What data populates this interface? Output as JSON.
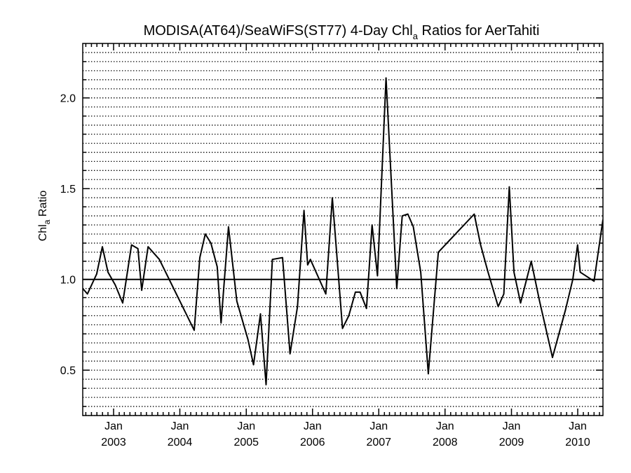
{
  "chart_data": {
    "type": "line",
    "title": {
      "main": "MODISA(AT64)/SeaWiFS(ST77) 4-Day Chl",
      "sub": "a",
      "rest": " Ratios for AerTahiti"
    },
    "ylabel": {
      "main": "Chl",
      "sub": "a",
      "rest": " Ratio"
    },
    "xlabel": "",
    "xlim": [
      "2002-07-15",
      "2010-05-20"
    ],
    "ylim": [
      0.25,
      2.3
    ],
    "yticks": [
      0.5,
      1.0,
      1.5,
      2.0
    ],
    "ytick_labels": [
      "0.5",
      "1.0",
      "1.5",
      "2.0"
    ],
    "xticks": [
      "2003-01-01",
      "2004-01-01",
      "2005-01-01",
      "2006-01-01",
      "2007-01-01",
      "2008-01-01",
      "2009-01-01",
      "2010-01-01"
    ],
    "xtick_month_labels": [
      "Jan",
      "Jan",
      "Jan",
      "Jan",
      "Jan",
      "Jan",
      "Jan",
      "Jan"
    ],
    "xtick_year_labels": [
      "2003",
      "2004",
      "2005",
      "2006",
      "2007",
      "2008",
      "2009",
      "2010"
    ],
    "grid": {
      "y_dotted_step": 0.05,
      "x": false
    },
    "reference_line": 1.0,
    "series": [
      {
        "color": "#000000",
        "points": [
          [
            "2002-07-15",
            0.95
          ],
          [
            "2002-08-10",
            0.92
          ],
          [
            "2002-09-30",
            1.03
          ],
          [
            "2002-10-31",
            1.18
          ],
          [
            "2002-12-01",
            1.04
          ],
          [
            "2003-01-10",
            0.97
          ],
          [
            "2003-02-20",
            0.87
          ],
          [
            "2003-04-10",
            1.19
          ],
          [
            "2003-05-15",
            1.17
          ],
          [
            "2003-06-05",
            0.94
          ],
          [
            "2003-07-10",
            1.18
          ],
          [
            "2003-09-10",
            1.11
          ],
          [
            "2004-03-20",
            0.72
          ],
          [
            "2004-04-20",
            1.12
          ],
          [
            "2004-05-20",
            1.25
          ],
          [
            "2004-06-20",
            1.2
          ],
          [
            "2004-07-25",
            1.07
          ],
          [
            "2004-08-15",
            0.76
          ],
          [
            "2004-09-25",
            1.29
          ],
          [
            "2004-11-10",
            0.88
          ],
          [
            "2005-01-10",
            0.67
          ],
          [
            "2005-02-10",
            0.53
          ],
          [
            "2005-03-20",
            0.81
          ],
          [
            "2005-04-20",
            0.42
          ],
          [
            "2005-05-25",
            1.11
          ],
          [
            "2005-07-20",
            1.12
          ],
          [
            "2005-08-30",
            0.59
          ],
          [
            "2005-10-10",
            0.85
          ],
          [
            "2005-11-15",
            1.38
          ],
          [
            "2005-12-05",
            1.08
          ],
          [
            "2005-12-20",
            1.11
          ],
          [
            "2006-03-15",
            0.92
          ],
          [
            "2006-04-20",
            1.45
          ],
          [
            "2006-05-15",
            1.13
          ],
          [
            "2006-06-15",
            0.73
          ],
          [
            "2006-07-20",
            0.8
          ],
          [
            "2006-08-25",
            0.93
          ],
          [
            "2006-09-20",
            0.93
          ],
          [
            "2006-10-25",
            0.84
          ],
          [
            "2006-11-25",
            1.3
          ],
          [
            "2006-12-25",
            1.02
          ],
          [
            "2007-02-10",
            2.11
          ],
          [
            "2007-04-10",
            0.95
          ],
          [
            "2007-05-10",
            1.35
          ],
          [
            "2007-06-10",
            1.36
          ],
          [
            "2007-07-10",
            1.29
          ],
          [
            "2007-08-20",
            1.04
          ],
          [
            "2007-10-01",
            0.48
          ],
          [
            "2007-11-25",
            1.15
          ],
          [
            "2008-06-10",
            1.36
          ],
          [
            "2008-07-15",
            1.19
          ],
          [
            "2008-08-25",
            1.04
          ],
          [
            "2008-10-20",
            0.85
          ],
          [
            "2008-11-20",
            0.92
          ],
          [
            "2008-12-20",
            1.51
          ],
          [
            "2009-01-15",
            1.04
          ],
          [
            "2009-02-20",
            0.87
          ],
          [
            "2009-04-20",
            1.1
          ],
          [
            "2009-06-05",
            0.88
          ],
          [
            "2009-08-15",
            0.57
          ],
          [
            "2009-10-25",
            0.83
          ],
          [
            "2009-12-05",
            1.0
          ],
          [
            "2009-12-31",
            1.19
          ],
          [
            "2010-01-15",
            1.04
          ],
          [
            "2010-04-01",
            0.99
          ],
          [
            "2010-05-20",
            1.33
          ]
        ]
      }
    ]
  }
}
